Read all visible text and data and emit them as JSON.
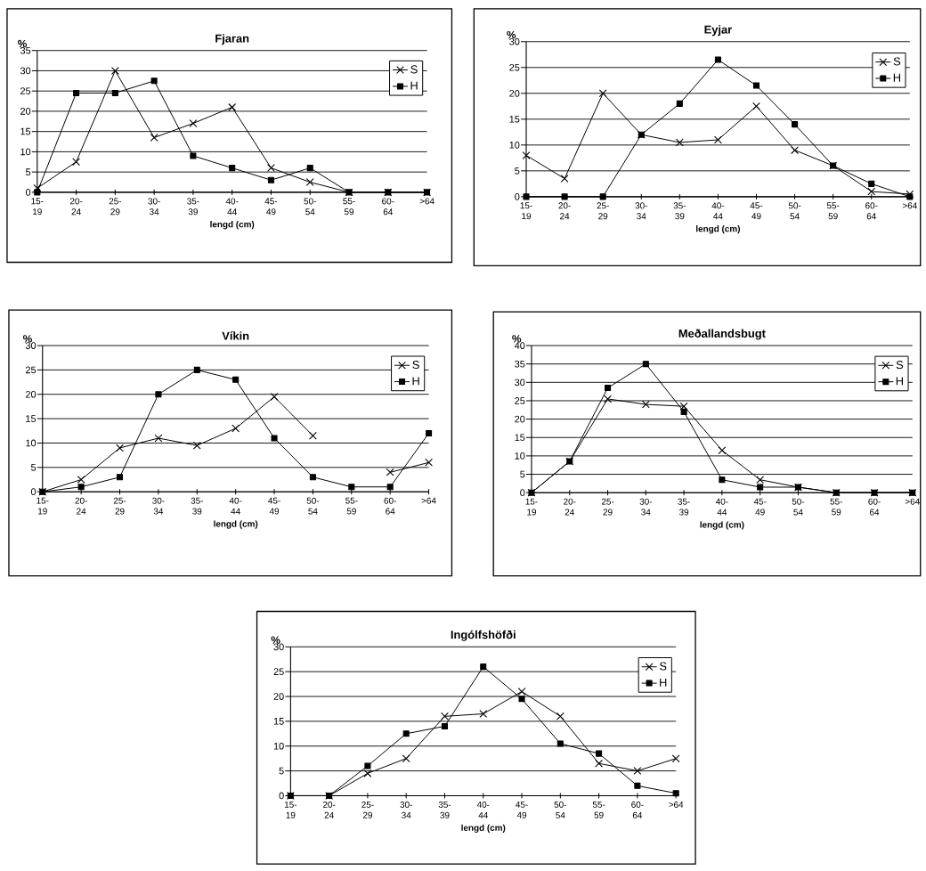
{
  "chart_data": [
    {
      "type": "line",
      "title": "Fjaran",
      "xlabel": "lengd (cm)",
      "ylabel": "%",
      "categories": [
        "15-19",
        "20-24",
        "25-29",
        "30-34",
        "35-39",
        "40-44",
        "45-49",
        "50-54",
        "55-59",
        "60-64",
        ">64"
      ],
      "ylim": [
        0,
        35
      ],
      "yticks": [
        0,
        5,
        10,
        15,
        20,
        25,
        30,
        35
      ],
      "grid": "y",
      "legend": "top right",
      "series": [
        {
          "name": "S",
          "color": "#000000",
          "marker": "cross",
          "values": [
            1,
            7.5,
            30,
            13.5,
            17,
            21,
            6,
            2.5,
            0,
            0,
            0
          ]
        },
        {
          "name": "H",
          "color": "#000000",
          "marker": "square",
          "values": [
            0,
            24.5,
            24.5,
            27.5,
            9,
            6,
            3,
            6,
            0,
            0,
            0
          ]
        }
      ]
    },
    {
      "type": "line",
      "title": "Eyjar",
      "xlabel": "lengd (cm)",
      "ylabel": "%",
      "categories": [
        "15-19",
        "20-24",
        "25-29",
        "30-34",
        "35-39",
        "40-44",
        "45-49",
        "50-54",
        "55-59",
        "60-64",
        ">64"
      ],
      "ylim": [
        0,
        30
      ],
      "yticks": [
        0,
        5,
        10,
        15,
        20,
        25,
        30
      ],
      "grid": "y",
      "legend": "top right",
      "series": [
        {
          "name": "S",
          "color": "#000000",
          "marker": "cross",
          "values": [
            8,
            3.5,
            20,
            12,
            10.5,
            11,
            17.5,
            9,
            6,
            1,
            0.5
          ]
        },
        {
          "name": "H",
          "color": "#000000",
          "marker": "square",
          "values": [
            0,
            0,
            0,
            12,
            18,
            26.5,
            21.5,
            14,
            6,
            2.5,
            0
          ]
        }
      ]
    },
    {
      "type": "line",
      "title": "Víkin",
      "xlabel": "lengd (cm)",
      "ylabel": "%",
      "categories": [
        "15-19",
        "20-24",
        "25-29",
        "30-34",
        "35-39",
        "40-44",
        "45-49",
        "50-54",
        "55-59",
        "60-64",
        ">64"
      ],
      "ylim": [
        0,
        30
      ],
      "yticks": [
        0,
        5,
        10,
        15,
        20,
        25,
        30
      ],
      "grid": "y",
      "legend": "top right",
      "series": [
        {
          "name": "S",
          "color": "#000000",
          "marker": "cross",
          "values": [
            0,
            2.5,
            9,
            11,
            9.5,
            13,
            19.5,
            11.5,
            null,
            4,
            6
          ]
        },
        {
          "name": "H",
          "color": "#000000",
          "marker": "square",
          "values": [
            0,
            1,
            3,
            20,
            25,
            23,
            11,
            3,
            1,
            1,
            12
          ]
        }
      ]
    },
    {
      "type": "line",
      "title": "Meðallandsbugt",
      "xlabel": "lengd (cm)",
      "ylabel": "%",
      "categories": [
        "15-19",
        "20-24",
        "25-29",
        "30-34",
        "35-39",
        "40-44",
        "45-49",
        "50-54",
        "55-59",
        "60-64",
        ">64"
      ],
      "ylim": [
        0,
        40
      ],
      "yticks": [
        0,
        5,
        10,
        15,
        20,
        25,
        30,
        35,
        40
      ],
      "grid": "y",
      "legend": "top right",
      "series": [
        {
          "name": "S",
          "color": "#000000",
          "marker": "cross",
          "values": [
            0,
            8.5,
            25.5,
            24,
            23.5,
            11.5,
            3.5,
            1.5,
            0,
            0,
            0
          ]
        },
        {
          "name": "H",
          "color": "#000000",
          "marker": "square",
          "values": [
            0,
            8.5,
            28.5,
            35,
            22,
            3.5,
            1.5,
            1.5,
            0,
            0,
            0
          ]
        }
      ]
    },
    {
      "type": "line",
      "title": "Ingólfshöfði",
      "xlabel": "lengd (cm)",
      "ylabel": "%",
      "categories": [
        "15-19",
        "20-24",
        "25-29",
        "30-34",
        "35-39",
        "40-44",
        "45-49",
        "50-54",
        "55-59",
        "60-64",
        ">64"
      ],
      "ylim": [
        0,
        30
      ],
      "yticks": [
        0,
        5,
        10,
        15,
        20,
        25,
        30
      ],
      "grid": "y",
      "legend": "top right",
      "series": [
        {
          "name": "S",
          "color": "#000000",
          "marker": "cross",
          "values": [
            0,
            0,
            4.5,
            7.5,
            16,
            16.5,
            21,
            16,
            6.5,
            5,
            7.5
          ]
        },
        {
          "name": "H",
          "color": "#000000",
          "marker": "square",
          "values": [
            0,
            0,
            6,
            12.5,
            14,
            26,
            19.5,
            10.5,
            8.5,
            2,
            0.5
          ]
        }
      ]
    }
  ]
}
